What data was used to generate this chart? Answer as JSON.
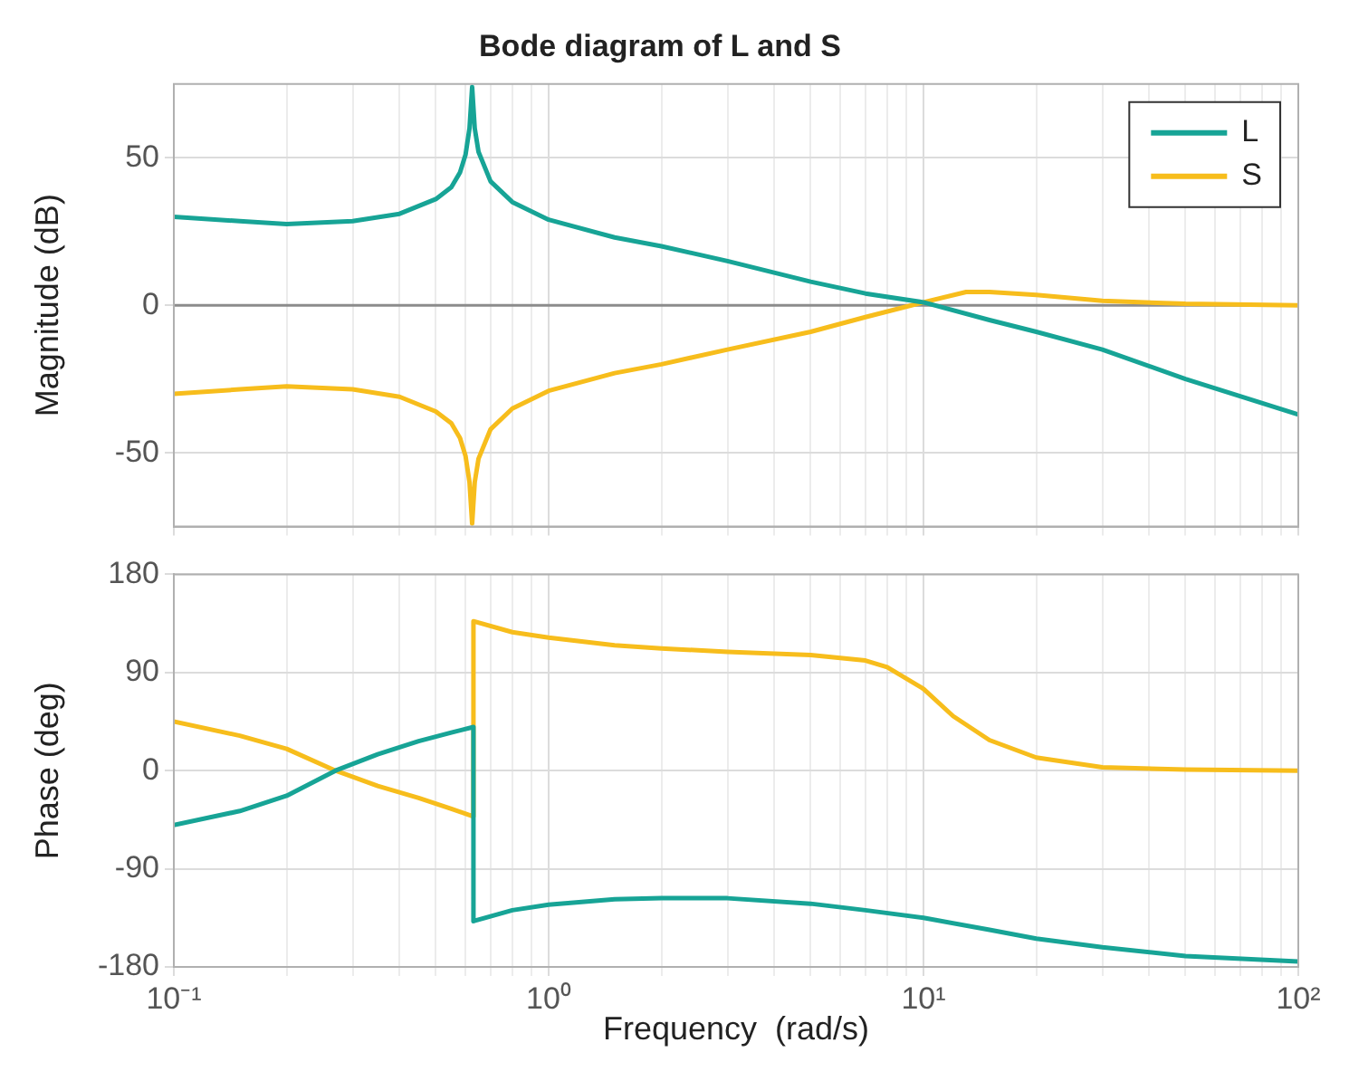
{
  "chart_data": [
    {
      "type": "line",
      "title": "Bode diagram of L and S",
      "ylabel": "Magnitude (dB)",
      "log": "x",
      "grid": true,
      "legend": "top right",
      "tick_labels": "y",
      "line_style": "solid",
      "marker": "none",
      "xlim": [
        0.1,
        100
      ],
      "xticks": [
        {
          "value": 0.1,
          "label": null
        },
        {
          "value": 0.2,
          "label": null
        },
        {
          "value": 0.3,
          "label": null
        },
        {
          "value": 0.4,
          "label": null
        },
        {
          "value": 0.5,
          "label": null
        },
        {
          "value": 0.6,
          "label": null
        },
        {
          "value": 0.7,
          "label": null
        },
        {
          "value": 0.8,
          "label": null
        },
        {
          "value": 0.9,
          "label": null
        },
        {
          "value": 1,
          "label": null
        },
        {
          "value": 2,
          "label": null
        },
        {
          "value": 3,
          "label": null
        },
        {
          "value": 4,
          "label": null
        },
        {
          "value": 5,
          "label": null
        },
        {
          "value": 6,
          "label": null
        },
        {
          "value": 7,
          "label": null
        },
        {
          "value": 8,
          "label": null
        },
        {
          "value": 9,
          "label": null
        },
        {
          "value": 10,
          "label": null
        },
        {
          "value": 20,
          "label": null
        },
        {
          "value": 30,
          "label": null
        },
        {
          "value": 40,
          "label": null
        },
        {
          "value": 50,
          "label": null
        },
        {
          "value": 60,
          "label": null
        },
        {
          "value": 70,
          "label": null
        },
        {
          "value": 80,
          "label": null
        },
        {
          "value": 90,
          "label": null
        },
        {
          "value": 100,
          "label": null
        }
      ],
      "ylim": [
        -75,
        75
      ],
      "yticks": [
        -50,
        0,
        50
      ],
      "ref_lines": [
        {
          "axis": "y",
          "value": 0,
          "color": "#8c8c8c"
        }
      ],
      "series": [
        {
          "name": "L",
          "color": "#17a496",
          "x": [
            0.1,
            0.15,
            0.2,
            0.3,
            0.4,
            0.5,
            0.55,
            0.58,
            0.6,
            0.615,
            0.625,
            0.635,
            0.65,
            0.7,
            0.8,
            1,
            1.5,
            2,
            3,
            5,
            7,
            10,
            15,
            20,
            30,
            50,
            100
          ],
          "values": [
            30,
            28.5,
            27.5,
            28.5,
            31,
            36,
            40,
            45,
            51,
            60,
            74,
            60,
            52,
            42,
            35,
            29,
            23,
            20,
            15,
            8,
            4,
            1,
            -5,
            -9,
            -15,
            -25,
            -37
          ]
        },
        {
          "name": "S",
          "color": "#f7bd1c",
          "x": [
            0.1,
            0.15,
            0.2,
            0.3,
            0.4,
            0.5,
            0.55,
            0.58,
            0.6,
            0.615,
            0.625,
            0.635,
            0.65,
            0.7,
            0.8,
            1,
            1.5,
            2,
            3,
            5,
            7,
            10,
            13,
            15,
            20,
            30,
            50,
            100
          ],
          "values": [
            -30,
            -28.5,
            -27.5,
            -28.5,
            -31,
            -36,
            -40,
            -45,
            -51,
            -60,
            -74,
            -60,
            -52,
            -42,
            -35,
            -29,
            -23,
            -20,
            -15,
            -9,
            -4,
            1,
            4.5,
            4.5,
            3.5,
            1.5,
            0.5,
            0
          ]
        }
      ]
    },
    {
      "type": "line",
      "xlabel": "Frequency  (rad/s)",
      "ylabel": "Phase (deg)",
      "log": "x",
      "grid": true,
      "line_style": "solid",
      "marker": "none",
      "xlim": [
        0.1,
        100
      ],
      "xticks": [
        {
          "value": 0.1,
          "label": "10⁻¹"
        },
        {
          "value": 0.2,
          "label": null
        },
        {
          "value": 0.3,
          "label": null
        },
        {
          "value": 0.4,
          "label": null
        },
        {
          "value": 0.5,
          "label": null
        },
        {
          "value": 0.6,
          "label": null
        },
        {
          "value": 0.7,
          "label": null
        },
        {
          "value": 0.8,
          "label": null
        },
        {
          "value": 0.9,
          "label": null
        },
        {
          "value": 1,
          "label": "10⁰"
        },
        {
          "value": 2,
          "label": null
        },
        {
          "value": 3,
          "label": null
        },
        {
          "value": 4,
          "label": null
        },
        {
          "value": 5,
          "label": null
        },
        {
          "value": 6,
          "label": null
        },
        {
          "value": 7,
          "label": null
        },
        {
          "value": 8,
          "label": null
        },
        {
          "value": 9,
          "label": null
        },
        {
          "value": 10,
          "label": "10¹"
        },
        {
          "value": 20,
          "label": null
        },
        {
          "value": 30,
          "label": null
        },
        {
          "value": 40,
          "label": null
        },
        {
          "value": 50,
          "label": null
        },
        {
          "value": 60,
          "label": null
        },
        {
          "value": 70,
          "label": null
        },
        {
          "value": 80,
          "label": null
        },
        {
          "value": 90,
          "label": null
        },
        {
          "value": 100,
          "label": "10²"
        }
      ],
      "ylim": [
        -180,
        180
      ],
      "yticks": [
        -180,
        -90,
        0,
        90,
        180
      ],
      "series": [
        {
          "color": "#17a496",
          "x": [
            0.1,
            0.15,
            0.2,
            0.27,
            0.35,
            0.45,
            0.55,
            0.63,
            0.63,
            0.8,
            1,
            1.5,
            2,
            3,
            5,
            7,
            10,
            15,
            20,
            30,
            50,
            100
          ],
          "values": [
            -50,
            -37,
            -23,
            0,
            15,
            27,
            35,
            40,
            -138,
            -128,
            -123,
            -118,
            -117,
            -117,
            -122,
            -128,
            -135,
            -146,
            -154,
            -162,
            -170,
            -175
          ]
        },
        {
          "color": "#f7bd1c",
          "x": [
            0.1,
            0.15,
            0.2,
            0.27,
            0.35,
            0.45,
            0.55,
            0.63,
            0.63,
            0.8,
            1,
            1.5,
            2,
            3,
            5,
            7,
            8,
            10,
            12,
            15,
            20,
            30,
            50,
            100
          ],
          "values": [
            45,
            32,
            20,
            0,
            -14,
            -25,
            -35,
            -42,
            137,
            127,
            122,
            115,
            112,
            109,
            106,
            101,
            95,
            75,
            50,
            28,
            12,
            3,
            1,
            0
          ]
        }
      ]
    }
  ]
}
